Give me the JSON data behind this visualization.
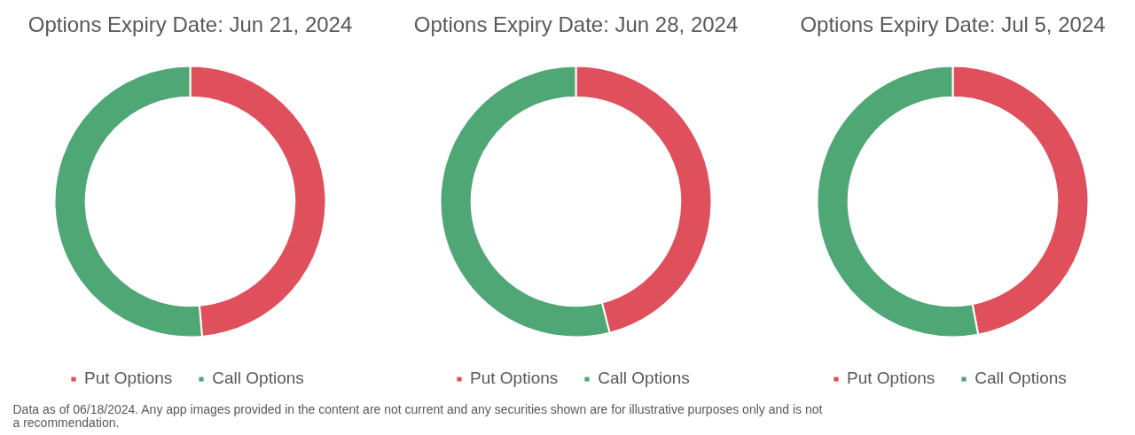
{
  "chart_data": [
    {
      "type": "donut",
      "title": "Options Expiry Date: Jun 21, 2024",
      "categories": [
        "Put Options",
        "Call Options"
      ],
      "values": [
        48.6,
        51.4
      ],
      "colors": [
        "#e04f5c",
        "#4ea774"
      ],
      "legend": "bottom",
      "annotations": [
        "Data as of 06/18/2024. Any app images provided in the content are not current and any securities shown are for illustrative purposes only and is not a recommendation."
      ]
    },
    {
      "type": "donut",
      "title": "Options Expiry Date: Jun 28, 2024",
      "categories": [
        "Put Options",
        "Call Options"
      ],
      "values": [
        46.0,
        54.0
      ],
      "colors": [
        "#e04f5c",
        "#4ea774"
      ],
      "legend": "bottom"
    },
    {
      "type": "donut",
      "title": "Options Expiry Date: Jul 5, 2024",
      "categories": [
        "Put Options",
        "Call Options"
      ],
      "values": [
        47.0,
        53.0
      ],
      "colors": [
        "#e04f5c",
        "#4ea774"
      ],
      "legend": "bottom"
    }
  ]
}
